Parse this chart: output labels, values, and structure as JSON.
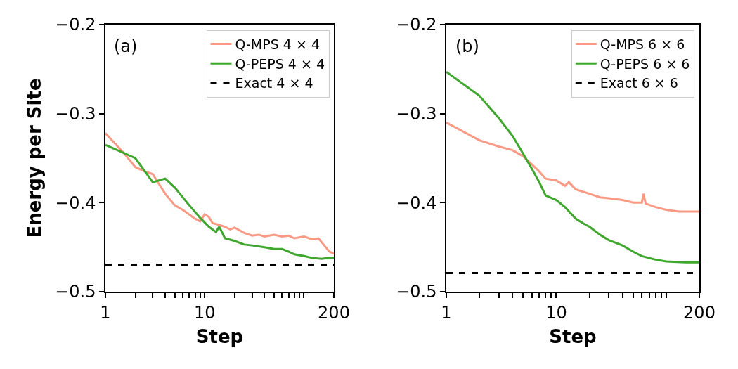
{
  "chart_data": [
    {
      "type": "line",
      "xlabel": "Step",
      "ylabel": "Energy per Site",
      "log": "x",
      "xlim": [
        1,
        200
      ],
      "ylim": [
        -0.5,
        -0.2
      ],
      "xticks": [
        1,
        {
          "value": 2,
          "label": null
        },
        {
          "value": 3,
          "label": null
        },
        {
          "value": 4,
          "label": null
        },
        {
          "value": 5,
          "label": null
        },
        {
          "value": 6,
          "label": null
        },
        {
          "value": 7,
          "label": null
        },
        {
          "value": 8,
          "label": null
        },
        {
          "value": 9,
          "label": null
        },
        10,
        {
          "value": 20,
          "label": null
        },
        {
          "value": 30,
          "label": null
        },
        {
          "value": 40,
          "label": null
        },
        {
          "value": 50,
          "label": null
        },
        {
          "value": 60,
          "label": null
        },
        {
          "value": 70,
          "label": null
        },
        {
          "value": 80,
          "label": null
        },
        {
          "value": 90,
          "label": null
        },
        {
          "value": 100,
          "label": null
        },
        200
      ],
      "yticks": [
        {
          "value": -0.5,
          "label": "−0.5"
        },
        {
          "value": -0.4,
          "label": "−0.4"
        },
        {
          "value": -0.3,
          "label": "−0.3"
        },
        {
          "value": -0.2,
          "label": "−0.2"
        }
      ],
      "grid": false,
      "legend": "top right",
      "annotations": [
        "(a)"
      ],
      "series": [
        {
          "name": "Q-MPS 4 × 4",
          "color": "#fa9a85",
          "line_style": "solid",
          "x": [
            1,
            1.5,
            2,
            2.5,
            3,
            4,
            5,
            6,
            8,
            9,
            10,
            11,
            12,
            14,
            16,
            18,
            20,
            25,
            30,
            35,
            40,
            50,
            60,
            70,
            80,
            100,
            120,
            140,
            160,
            180,
            200
          ],
          "values": [
            -0.322,
            -0.343,
            -0.36,
            -0.365,
            -0.368,
            -0.39,
            -0.403,
            -0.408,
            -0.418,
            -0.421,
            -0.413,
            -0.416,
            -0.423,
            -0.425,
            -0.427,
            -0.43,
            -0.428,
            -0.434,
            -0.437,
            -0.436,
            -0.438,
            -0.436,
            -0.438,
            -0.437,
            -0.44,
            -0.438,
            -0.441,
            -0.44,
            -0.448,
            -0.455,
            -0.457
          ]
        },
        {
          "name": "Q-PEPS 4 × 4",
          "color": "#3fa62e",
          "line_style": "solid",
          "x": [
            1,
            2,
            3,
            4,
            5,
            7,
            9,
            11,
            13,
            14,
            16,
            20,
            25,
            30,
            40,
            50,
            60,
            70,
            80,
            100,
            120,
            150,
            180,
            200
          ],
          "values": [
            -0.335,
            -0.35,
            -0.377,
            -0.373,
            -0.383,
            -0.403,
            -0.417,
            -0.427,
            -0.433,
            -0.427,
            -0.44,
            -0.443,
            -0.447,
            -0.448,
            -0.45,
            -0.452,
            -0.452,
            -0.455,
            -0.458,
            -0.46,
            -0.462,
            -0.463,
            -0.462,
            -0.462
          ]
        },
        {
          "name": "Exact 4 × 4",
          "color": "#000000",
          "line_style": "dashed",
          "x": [
            1,
            200
          ],
          "values": [
            -0.47,
            -0.47
          ]
        }
      ]
    },
    {
      "type": "line",
      "xlabel": "Step",
      "log": "x",
      "xlim": [
        1,
        200
      ],
      "ylim": [
        -0.5,
        -0.2
      ],
      "xticks": [
        1,
        {
          "value": 2,
          "label": null
        },
        {
          "value": 3,
          "label": null
        },
        {
          "value": 4,
          "label": null
        },
        {
          "value": 5,
          "label": null
        },
        {
          "value": 6,
          "label": null
        },
        {
          "value": 7,
          "label": null
        },
        {
          "value": 8,
          "label": null
        },
        {
          "value": 9,
          "label": null
        },
        10,
        {
          "value": 20,
          "label": null
        },
        {
          "value": 30,
          "label": null
        },
        {
          "value": 40,
          "label": null
        },
        {
          "value": 50,
          "label": null
        },
        {
          "value": 60,
          "label": null
        },
        {
          "value": 70,
          "label": null
        },
        {
          "value": 80,
          "label": null
        },
        {
          "value": 90,
          "label": null
        },
        {
          "value": 100,
          "label": null
        },
        200
      ],
      "yticks": [
        {
          "value": -0.5,
          "label": "−0.5"
        },
        {
          "value": -0.4,
          "label": "−0.4"
        },
        {
          "value": -0.3,
          "label": "−0.3"
        },
        {
          "value": -0.2,
          "label": "−0.2"
        }
      ],
      "grid": false,
      "legend": "top right",
      "annotations": [
        "(b)"
      ],
      "series": [
        {
          "name": "Q-MPS 6 × 6",
          "color": "#fa9a85",
          "line_style": "solid",
          "x": [
            1,
            2,
            3,
            4,
            5,
            6,
            7,
            8,
            10,
            12,
            13,
            15,
            20,
            25,
            30,
            40,
            50,
            60,
            62,
            65,
            80,
            100,
            130,
            160,
            200
          ],
          "values": [
            -0.31,
            -0.33,
            -0.337,
            -0.341,
            -0.348,
            -0.357,
            -0.365,
            -0.373,
            -0.375,
            -0.381,
            -0.377,
            -0.385,
            -0.39,
            -0.394,
            -0.395,
            -0.397,
            -0.4,
            -0.4,
            -0.39,
            -0.401,
            -0.405,
            -0.408,
            -0.41,
            -0.41,
            -0.41
          ]
        },
        {
          "name": "Q-PEPS 6 × 6",
          "color": "#3fa62e",
          "line_style": "solid",
          "x": [
            1,
            2,
            3,
            4,
            5,
            6,
            7,
            8,
            10,
            12,
            15,
            18,
            20,
            25,
            30,
            40,
            50,
            60,
            80,
            100,
            150,
            200
          ],
          "values": [
            -0.253,
            -0.28,
            -0.305,
            -0.325,
            -0.345,
            -0.362,
            -0.377,
            -0.392,
            -0.397,
            -0.405,
            -0.418,
            -0.424,
            -0.427,
            -0.436,
            -0.442,
            -0.448,
            -0.455,
            -0.46,
            -0.464,
            -0.466,
            -0.467,
            -0.467
          ]
        },
        {
          "name": "Exact 6 × 6",
          "color": "#000000",
          "line_style": "dashed",
          "x": [
            1,
            200
          ],
          "values": [
            -0.479,
            -0.479
          ]
        }
      ]
    }
  ]
}
